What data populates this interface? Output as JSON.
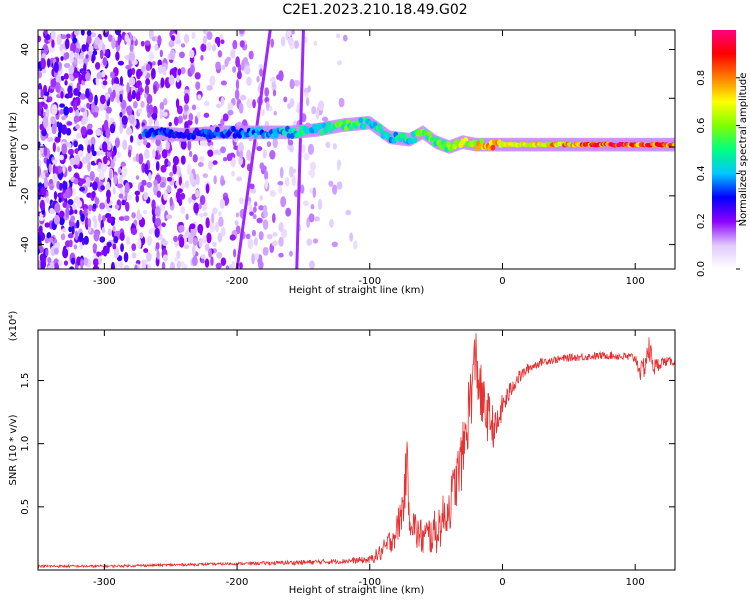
{
  "title": "C2E1.2023.210.18.49.G02",
  "colors": {
    "snr_line": "#e83030",
    "frame": "#000000"
  },
  "chart_data": [
    {
      "type": "heatmap",
      "xlabel": "Height of straight line (km)",
      "ylabel": "Frequency (Hz)",
      "xlim": [
        -350,
        130
      ],
      "ylim": [
        -50,
        48
      ],
      "x_ticks": [
        -300,
        -200,
        -100,
        0,
        100
      ],
      "y_ticks": [
        -40,
        -20,
        0,
        20,
        40
      ],
      "colorbar": {
        "label": "Normalized spectral amplitude",
        "range": [
          0.0,
          1.0
        ],
        "ticks": [
          "0.0",
          "0.2",
          "0.4",
          "0.6",
          "0.8"
        ],
        "colormap": [
          "#ffffff",
          "#e0c8ff",
          "#8c00ff",
          "#0000ff",
          "#00c8ff",
          "#00ff80",
          "#80ff00",
          "#ffff00",
          "#ff8000",
          "#ff0000",
          "#ff0080"
        ]
      },
      "main_trace": {
        "x": [
          -270,
          -240,
          -210,
          -180,
          -160,
          -140,
          -120,
          -100,
          -85,
          -70,
          -60,
          -50,
          -40,
          -30,
          -20,
          0,
          20,
          50,
          80,
          100,
          130
        ],
        "freq": [
          6,
          5,
          6,
          6,
          6,
          7,
          9,
          10,
          4,
          3,
          6,
          2,
          0,
          2,
          1,
          1,
          1,
          1,
          1,
          1,
          1
        ],
        "amplitude": [
          0.35,
          0.3,
          0.35,
          0.4,
          0.45,
          0.5,
          0.55,
          0.5,
          0.45,
          0.5,
          0.6,
          0.55,
          0.6,
          0.7,
          0.75,
          0.8,
          0.75,
          0.8,
          0.95,
          0.9,
          0.85
        ]
      },
      "streak_lines": [
        {
          "x_start": -200,
          "x_end": -175,
          "freq_start": -50,
          "freq_end": 48
        },
        {
          "x_start": -155,
          "x_end": -150,
          "freq_start": -50,
          "freq_end": 48
        }
      ]
    },
    {
      "type": "line",
      "xlabel": "Height of straight line (km)",
      "ylabel": "SNR (10 * v/v)",
      "y_multiplier": "(x10⁴)",
      "xlim": [
        -350,
        130
      ],
      "ylim": [
        0,
        1.9
      ],
      "x_ticks": [
        -300,
        -200,
        -100,
        0,
        100
      ],
      "y_ticks": [
        0.5,
        1.0,
        1.5
      ],
      "series": [
        {
          "x": [
            -350,
            -300,
            -250,
            -200,
            -150,
            -120,
            -100,
            -90,
            -80,
            -75,
            -72,
            -70,
            -65,
            -60,
            -50,
            -40,
            -30,
            -25,
            -20,
            -18,
            -15,
            -10,
            -5,
            0,
            10,
            20,
            30,
            50,
            80,
            100,
            105,
            110,
            115,
            120,
            130
          ],
          "values": [
            0.03,
            0.03,
            0.04,
            0.05,
            0.06,
            0.07,
            0.08,
            0.15,
            0.3,
            0.5,
            0.85,
            0.45,
            0.3,
            0.25,
            0.3,
            0.5,
            0.9,
            1.3,
            1.7,
            1.5,
            1.3,
            1.2,
            1.1,
            1.3,
            1.5,
            1.6,
            1.65,
            1.68,
            1.7,
            1.68,
            1.55,
            1.75,
            1.6,
            1.65,
            1.65
          ],
          "noise": [
            0.01,
            0.01,
            0.01,
            0.01,
            0.02,
            0.02,
            0.03,
            0.08,
            0.12,
            0.2,
            0.2,
            0.18,
            0.15,
            0.15,
            0.18,
            0.2,
            0.25,
            0.3,
            0.25,
            0.25,
            0.25,
            0.2,
            0.15,
            0.1,
            0.06,
            0.04,
            0.03,
            0.03,
            0.03,
            0.04,
            0.1,
            0.12,
            0.08,
            0.04,
            0.03
          ]
        }
      ]
    }
  ]
}
